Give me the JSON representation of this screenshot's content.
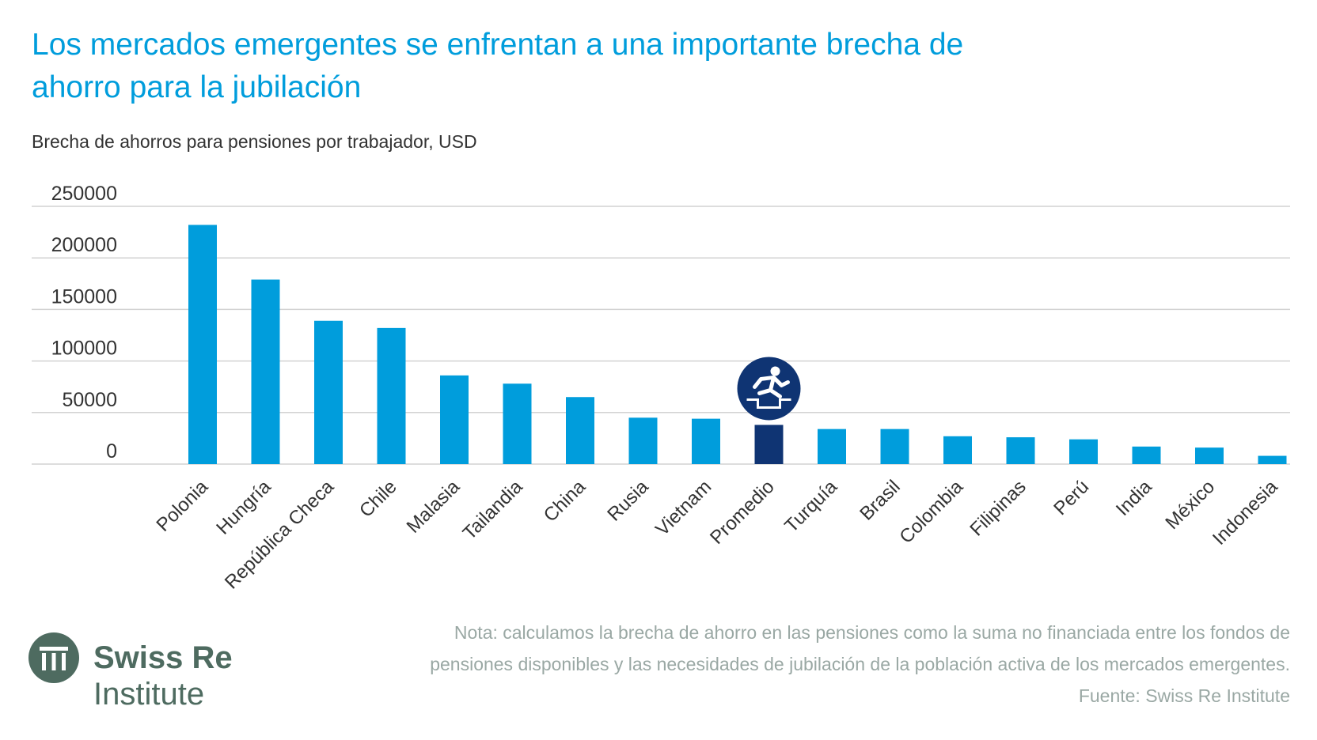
{
  "title": "Los mercados emergentes se enfrentan a una importante brecha de ahorro para la jubilación",
  "subtitle": "Brecha de ahorros para pensiones por trabajador, USD",
  "note_lines": [
    "Nota: calculamos la brecha de ahorro en las pensiones como la suma no financiada entre los fondos de",
    "pensiones disponibles y las necesidades de jubilación de la población activa de los mercados emergentes.",
    "Fuente: Swiss Re Institute"
  ],
  "logo": {
    "name": "Swiss Re",
    "sub": "Institute"
  },
  "colors": {
    "bar": "#009ddc",
    "highlight": "#0f3473",
    "title": "#009ddc",
    "logo": "#4e6b60",
    "note": "#9aa8a4"
  },
  "icon": "running-figure-icon",
  "chart_data": {
    "type": "bar",
    "categories": [
      "Polonia",
      "Hungría",
      "República Checa",
      "Chile",
      "Malasia",
      "Tailandia",
      "China",
      "Rusia",
      "Vietnam",
      "Promedio",
      "Turquía",
      "Brasil",
      "Colombia",
      "Filipinas",
      "Perú",
      "India",
      "México",
      "Indonesia"
    ],
    "values": [
      232000,
      179000,
      139000,
      132000,
      86000,
      78000,
      65000,
      45000,
      44000,
      38000,
      34000,
      34000,
      27000,
      26000,
      24000,
      17000,
      16000,
      8000
    ],
    "highlight_category": "Promedio",
    "yticks": [
      0,
      50000,
      100000,
      150000,
      200000,
      250000
    ],
    "ylim": [
      0,
      250000
    ],
    "grid": true,
    "xlabel_rotation": -45
  }
}
